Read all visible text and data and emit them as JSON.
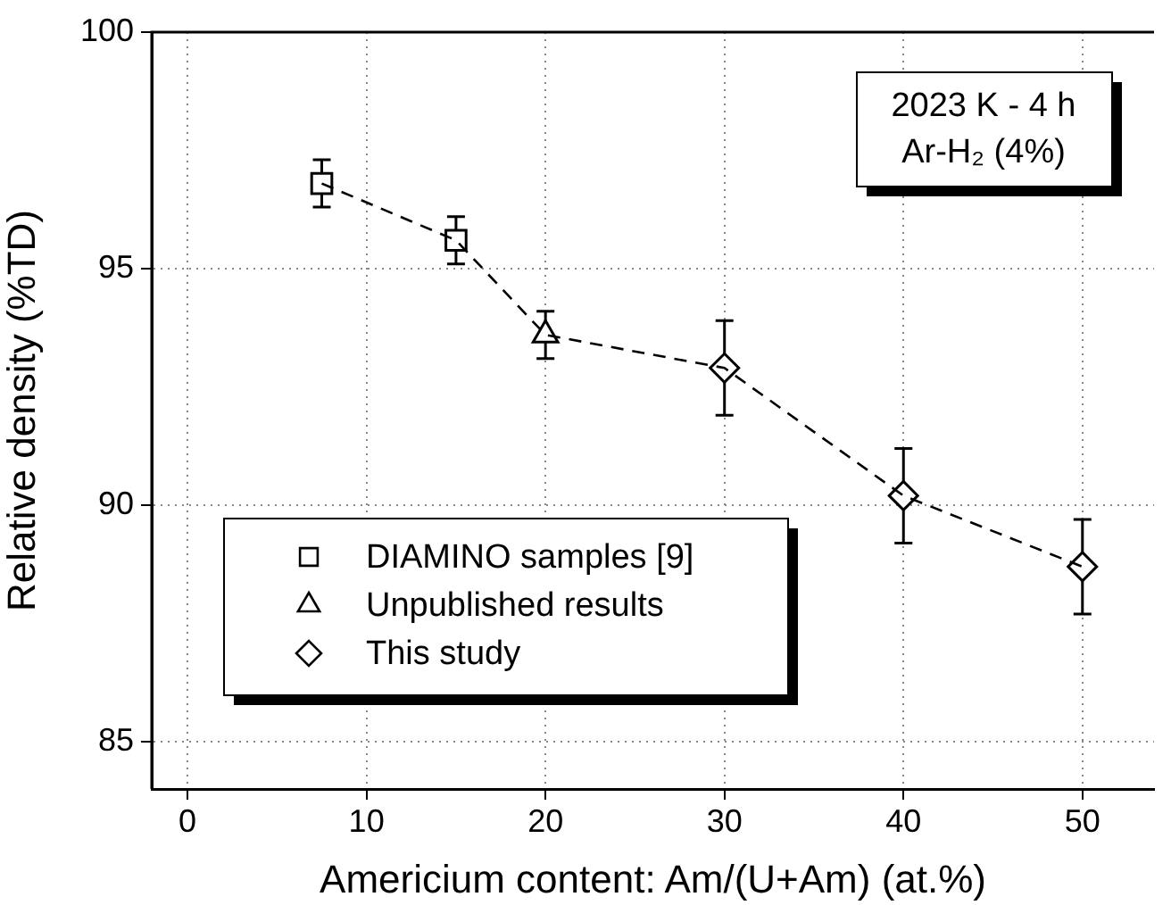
{
  "chart_data": {
    "type": "scatter",
    "xlabel": "Americium content: Am/(U+Am) (at.%)",
    "ylabel": "Relative density (%TD)",
    "annotations": [
      "2023 K - 4 h",
      "Ar-H₂ (4%)"
    ],
    "series": [
      {
        "type": "line",
        "color": "#000000",
        "line_style": "dashed",
        "marker": "none",
        "x": [
          7.5,
          15,
          20,
          30,
          40,
          50
        ],
        "values": [
          96.8,
          95.6,
          93.6,
          92.9,
          90.2,
          88.7
        ]
      },
      {
        "name": "DIAMINO samples [9]",
        "color": "#000000",
        "marker": "square",
        "x": [
          7.5,
          15
        ],
        "values": [
          96.8,
          95.6
        ],
        "errors": [
          0.5,
          0.5
        ]
      },
      {
        "name": "Unpublished results",
        "color": "#000000",
        "marker": "triangle",
        "x": [
          20
        ],
        "values": [
          93.6
        ],
        "errors": [
          0.5
        ]
      },
      {
        "name": "This study",
        "color": "#000000",
        "marker": "diamond",
        "x": [
          30,
          40,
          50
        ],
        "values": [
          92.9,
          90.2,
          88.7
        ],
        "errors": [
          1,
          1,
          1
        ]
      }
    ],
    "xlim": [
      -2,
      54
    ],
    "xticks": [
      0,
      10,
      20,
      30,
      40,
      50
    ],
    "ylim": [
      84,
      100
    ],
    "yticks": [
      85,
      90,
      95,
      100
    ],
    "grid": true,
    "legend": "bottom left"
  }
}
